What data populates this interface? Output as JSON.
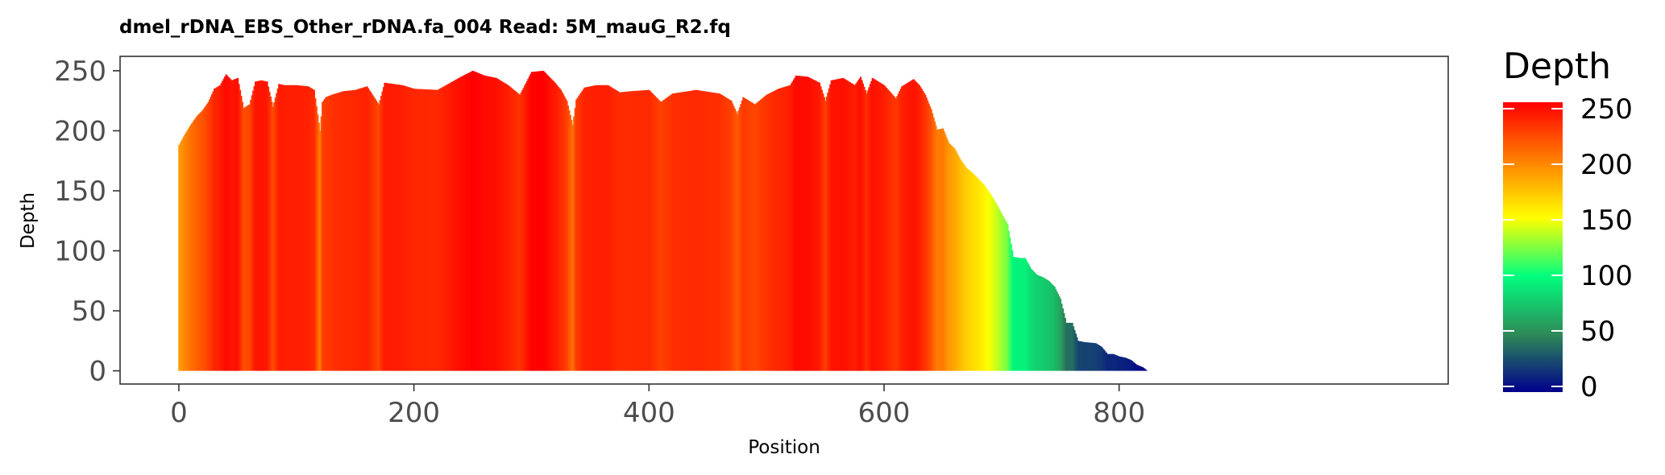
{
  "chart_data": {
    "type": "bar",
    "title": "dmel_rDNA_EBS_Other_rDNA.fa_004   Read: 5M_mauG_R2.fq",
    "xlabel": "Position",
    "ylabel": "Depth",
    "xlim": [
      -50,
      1080
    ],
    "ylim": [
      -11,
      262
    ],
    "xticks": [
      0,
      200,
      400,
      600,
      800
    ],
    "yticks": [
      0,
      50,
      100,
      150,
      200,
      250
    ],
    "grid": false,
    "legend": {
      "title": "Depth",
      "placement": "right",
      "min": 0,
      "max": 250,
      "labels": [
        0,
        50,
        100,
        150,
        200,
        250
      ],
      "colors": [
        "#00008b",
        "#2e8b57",
        "#00ff7f",
        "#ffff00",
        "#ff7f00",
        "#ff0000"
      ]
    },
    "points": [
      [
        0,
        188
      ],
      [
        5,
        197
      ],
      [
        10,
        205
      ],
      [
        15,
        212
      ],
      [
        20,
        217
      ],
      [
        25,
        224
      ],
      [
        30,
        235
      ],
      [
        35,
        238
      ],
      [
        40,
        247
      ],
      [
        45,
        242
      ],
      [
        50,
        244
      ],
      [
        55,
        219
      ],
      [
        60,
        222
      ],
      [
        65,
        241
      ],
      [
        70,
        242
      ],
      [
        75,
        241
      ],
      [
        80,
        220
      ],
      [
        85,
        239
      ],
      [
        90,
        238
      ],
      [
        100,
        238
      ],
      [
        110,
        237
      ],
      [
        115,
        234
      ],
      [
        120,
        200
      ],
      [
        122,
        224
      ],
      [
        125,
        228
      ],
      [
        130,
        230
      ],
      [
        140,
        233
      ],
      [
        150,
        234
      ],
      [
        160,
        237
      ],
      [
        170,
        222
      ],
      [
        175,
        240
      ],
      [
        190,
        238
      ],
      [
        200,
        235
      ],
      [
        220,
        234
      ],
      [
        240,
        245
      ],
      [
        250,
        250
      ],
      [
        260,
        246
      ],
      [
        270,
        244
      ],
      [
        280,
        238
      ],
      [
        290,
        230
      ],
      [
        300,
        249
      ],
      [
        310,
        250
      ],
      [
        320,
        240
      ],
      [
        325,
        234
      ],
      [
        330,
        225
      ],
      [
        335,
        205
      ],
      [
        338,
        226
      ],
      [
        345,
        236
      ],
      [
        355,
        238
      ],
      [
        365,
        238
      ],
      [
        375,
        232
      ],
      [
        385,
        233
      ],
      [
        400,
        234
      ],
      [
        410,
        224
      ],
      [
        420,
        231
      ],
      [
        440,
        234
      ],
      [
        460,
        231
      ],
      [
        470,
        225
      ],
      [
        475,
        214
      ],
      [
        480,
        228
      ],
      [
        490,
        222
      ],
      [
        500,
        230
      ],
      [
        510,
        235
      ],
      [
        520,
        238
      ],
      [
        525,
        246
      ],
      [
        535,
        245
      ],
      [
        545,
        240
      ],
      [
        550,
        225
      ],
      [
        555,
        242
      ],
      [
        565,
        244
      ],
      [
        575,
        238
      ],
      [
        580,
        245
      ],
      [
        585,
        231
      ],
      [
        590,
        244
      ],
      [
        600,
        238
      ],
      [
        610,
        227
      ],
      [
        615,
        237
      ],
      [
        625,
        243
      ],
      [
        630,
        238
      ],
      [
        635,
        230
      ],
      [
        640,
        218
      ],
      [
        645,
        201
      ],
      [
        650,
        202
      ],
      [
        655,
        190
      ],
      [
        660,
        185
      ],
      [
        665,
        176
      ],
      [
        670,
        169
      ],
      [
        675,
        165
      ],
      [
        680,
        160
      ],
      [
        685,
        155
      ],
      [
        690,
        148
      ],
      [
        695,
        140
      ],
      [
        700,
        131
      ],
      [
        705,
        122
      ],
      [
        710,
        95
      ],
      [
        715,
        94
      ],
      [
        720,
        94
      ],
      [
        725,
        85
      ],
      [
        730,
        80
      ],
      [
        735,
        78
      ],
      [
        740,
        75
      ],
      [
        745,
        70
      ],
      [
        750,
        60
      ],
      [
        755,
        40
      ],
      [
        760,
        40
      ],
      [
        765,
        25
      ],
      [
        770,
        24
      ],
      [
        780,
        23
      ],
      [
        785,
        20
      ],
      [
        790,
        14
      ],
      [
        795,
        14
      ],
      [
        800,
        12
      ],
      [
        805,
        11
      ],
      [
        810,
        9
      ],
      [
        815,
        5
      ],
      [
        820,
        3
      ],
      [
        824,
        0
      ]
    ]
  }
}
